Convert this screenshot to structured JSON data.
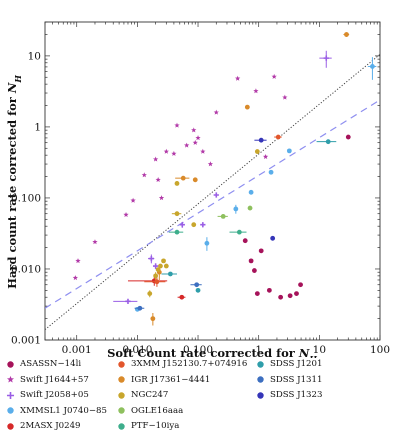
{
  "chart_data": {
    "type": "scatter",
    "xlabel": "Soft Count rate corrected for N_H",
    "ylabel": "Hard count rate corrected for N_H",
    "xscale": "log",
    "yscale": "log",
    "xlim": [
      0.0003,
      100
    ],
    "ylim": [
      0.001,
      30
    ],
    "x_ticks": [
      0.001,
      0.01,
      0.1,
      1,
      10,
      100
    ],
    "x_tick_labels": [
      "0.001",
      "0.010",
      "0.100",
      "1",
      "10",
      "100"
    ],
    "y_ticks": [
      0.001,
      0.01,
      0.1,
      1,
      10
    ],
    "y_tick_labels": [
      "0.001",
      "0.010",
      "0.100",
      "1",
      "10"
    ],
    "reference_lines": [
      {
        "style": "dotted",
        "color": "#444444",
        "x": [
          0.0003,
          100
        ],
        "y": [
          0.0014,
          10.5
        ]
      },
      {
        "style": "dashed",
        "color": "#8f8ff0",
        "x": [
          0.0003,
          100
        ],
        "y": [
          0.0028,
          2.4
        ]
      }
    ],
    "series": [
      {
        "name": "ASASSN−14li",
        "color": "#a6135a",
        "marker": "circle",
        "points": [
          [
            0.6,
            0.025
          ],
          [
            0.75,
            0.013
          ],
          [
            0.85,
            0.0095
          ],
          [
            0.95,
            0.0045
          ],
          [
            1.1,
            0.018
          ],
          [
            1.5,
            0.005
          ],
          [
            2.3,
            0.004
          ],
          [
            3.3,
            0.0042
          ],
          [
            4.2,
            0.0045
          ],
          [
            4.9,
            0.006
          ],
          [
            30,
            0.72
          ]
        ]
      },
      {
        "name": "Swift J1644+57",
        "color": "#b23aa8",
        "marker": "star",
        "points": [
          [
            0.00095,
            0.0075
          ],
          [
            0.00105,
            0.013
          ],
          [
            0.002,
            0.024
          ],
          [
            0.0065,
            0.058
          ],
          [
            0.0085,
            0.092
          ],
          [
            0.013,
            0.21
          ],
          [
            0.02,
            0.35
          ],
          [
            0.022,
            0.18
          ],
          [
            0.025,
            0.1
          ],
          [
            0.03,
            0.45
          ],
          [
            0.04,
            0.42
          ],
          [
            0.045,
            1.05
          ],
          [
            0.065,
            0.55
          ],
          [
            0.085,
            0.9
          ],
          [
            0.09,
            0.6
          ],
          [
            0.1,
            0.7
          ],
          [
            0.12,
            0.45
          ],
          [
            0.16,
            0.3
          ],
          [
            0.2,
            1.6
          ],
          [
            0.45,
            4.8
          ],
          [
            0.9,
            3.2
          ],
          [
            1.3,
            0.38
          ],
          [
            1.8,
            5.1
          ],
          [
            2.7,
            2.6
          ]
        ]
      },
      {
        "name": "Swift J2058+05",
        "color": "#9a5ee5",
        "marker": "cross",
        "points": [
          [
            0.007,
            0.0035,
            0.003,
            0
          ],
          [
            0.017,
            0.014,
            0.002,
            0.002
          ],
          [
            0.02,
            0.011,
            0,
            0.001
          ],
          [
            0.055,
            0.042,
            0,
            0.004
          ],
          [
            0.12,
            0.042,
            0,
            0
          ],
          [
            0.2,
            0.11,
            0,
            0
          ],
          [
            13,
            9.3,
            3,
            2.5
          ]
        ]
      },
      {
        "name": "XMMSL1 J0740−85",
        "color": "#5aaeea",
        "marker": "circle",
        "points": [
          [
            0.01,
            0.0027,
            0,
            0
          ],
          [
            0.14,
            0.023,
            0,
            0.005
          ],
          [
            0.42,
            0.07,
            0,
            0.01
          ],
          [
            0.75,
            0.12,
            0,
            0
          ],
          [
            1.6,
            0.23,
            0,
            0
          ],
          [
            3.2,
            0.46,
            0,
            0
          ],
          [
            75,
            7.1,
            12,
            2.5
          ]
        ]
      },
      {
        "name": "2MASX J0249",
        "color": "#d62828",
        "marker": "circle",
        "points": [
          [
            0.019,
            0.0068,
            0.012,
            0.001
          ],
          [
            0.054,
            0.004,
            0.008,
            0
          ]
        ]
      },
      {
        "name": "3XMM J152130.7+074916",
        "color": "#e2562c",
        "marker": "circle",
        "points": [
          [
            0.021,
            0.0066,
            0.008,
            0.001
          ],
          [
            2.1,
            0.72,
            0.3,
            0
          ]
        ]
      },
      {
        "name": "IGR J17361−4441",
        "color": "#d98a2a",
        "marker": "circle",
        "points": [
          [
            0.018,
            0.002,
            0,
            0.0004
          ],
          [
            0.023,
            0.009,
            0,
            0.002
          ],
          [
            0.057,
            0.19,
            0.015,
            0
          ],
          [
            0.09,
            0.18,
            0,
            0
          ],
          [
            0.65,
            1.9,
            0,
            0
          ],
          [
            28,
            20,
            3,
            1.5
          ]
        ]
      },
      {
        "name": "NGC247",
        "color": "#c8a62c",
        "marker": "circle",
        "points": [
          [
            0.016,
            0.0045,
            0,
            0.0005
          ],
          [
            0.02,
            0.008,
            0,
            0.001
          ],
          [
            0.022,
            0.0098,
            0,
            0
          ],
          [
            0.024,
            0.011,
            0,
            0
          ],
          [
            0.027,
            0.013,
            0,
            0
          ],
          [
            0.03,
            0.011,
            0,
            0
          ],
          [
            0.045,
            0.06,
            0.008,
            0
          ],
          [
            0.045,
            0.16,
            0,
            0
          ],
          [
            0.085,
            0.042,
            0,
            0
          ],
          [
            0.95,
            0.45,
            0,
            0
          ]
        ]
      },
      {
        "name": "OGLE16aaa",
        "color": "#8ec05e",
        "marker": "circle",
        "points": [
          [
            0.26,
            0.055,
            0.05,
            0
          ],
          [
            0.72,
            0.072,
            0,
            0
          ]
        ]
      },
      {
        "name": "PTF−10iya",
        "color": "#3eae8c",
        "marker": "circle",
        "points": [
          [
            0.045,
            0.033,
            0.012,
            0.002
          ],
          [
            0.48,
            0.033,
            0.15,
            0
          ]
        ]
      },
      {
        "name": "SDSS J1201",
        "color": "#2f9eaa",
        "marker": "circle",
        "points": [
          [
            0.035,
            0.0085,
            0.01,
            0
          ],
          [
            0.1,
            0.005,
            0,
            0
          ],
          [
            14,
            0.62,
            5,
            0
          ]
        ]
      },
      {
        "name": "SDSS J1311",
        "color": "#3d6fc0",
        "marker": "circle",
        "points": [
          [
            0.011,
            0.0028,
            0.002,
            0
          ],
          [
            0.095,
            0.006,
            0.02,
            0
          ]
        ]
      },
      {
        "name": "SDSS J1323",
        "color": "#3535b8",
        "marker": "circle",
        "points": [
          [
            1.1,
            0.65,
            0.25,
            0
          ],
          [
            1.7,
            0.027,
            0,
            0
          ]
        ]
      }
    ],
    "legend_position": "bottom"
  },
  "legend_items": [
    "ASASSN−14li",
    "Swift J1644+57",
    "Swift J2058+05",
    "XMMSL1 J0740−85",
    "2MASX J0249",
    "3XMM J152130.7+074916",
    "IGR J17361−4441",
    "NGC247",
    "OGLE16aaa",
    "PTF−10iya",
    "SDSS J1201",
    "SDSS J1311",
    "SDSS J1323"
  ]
}
